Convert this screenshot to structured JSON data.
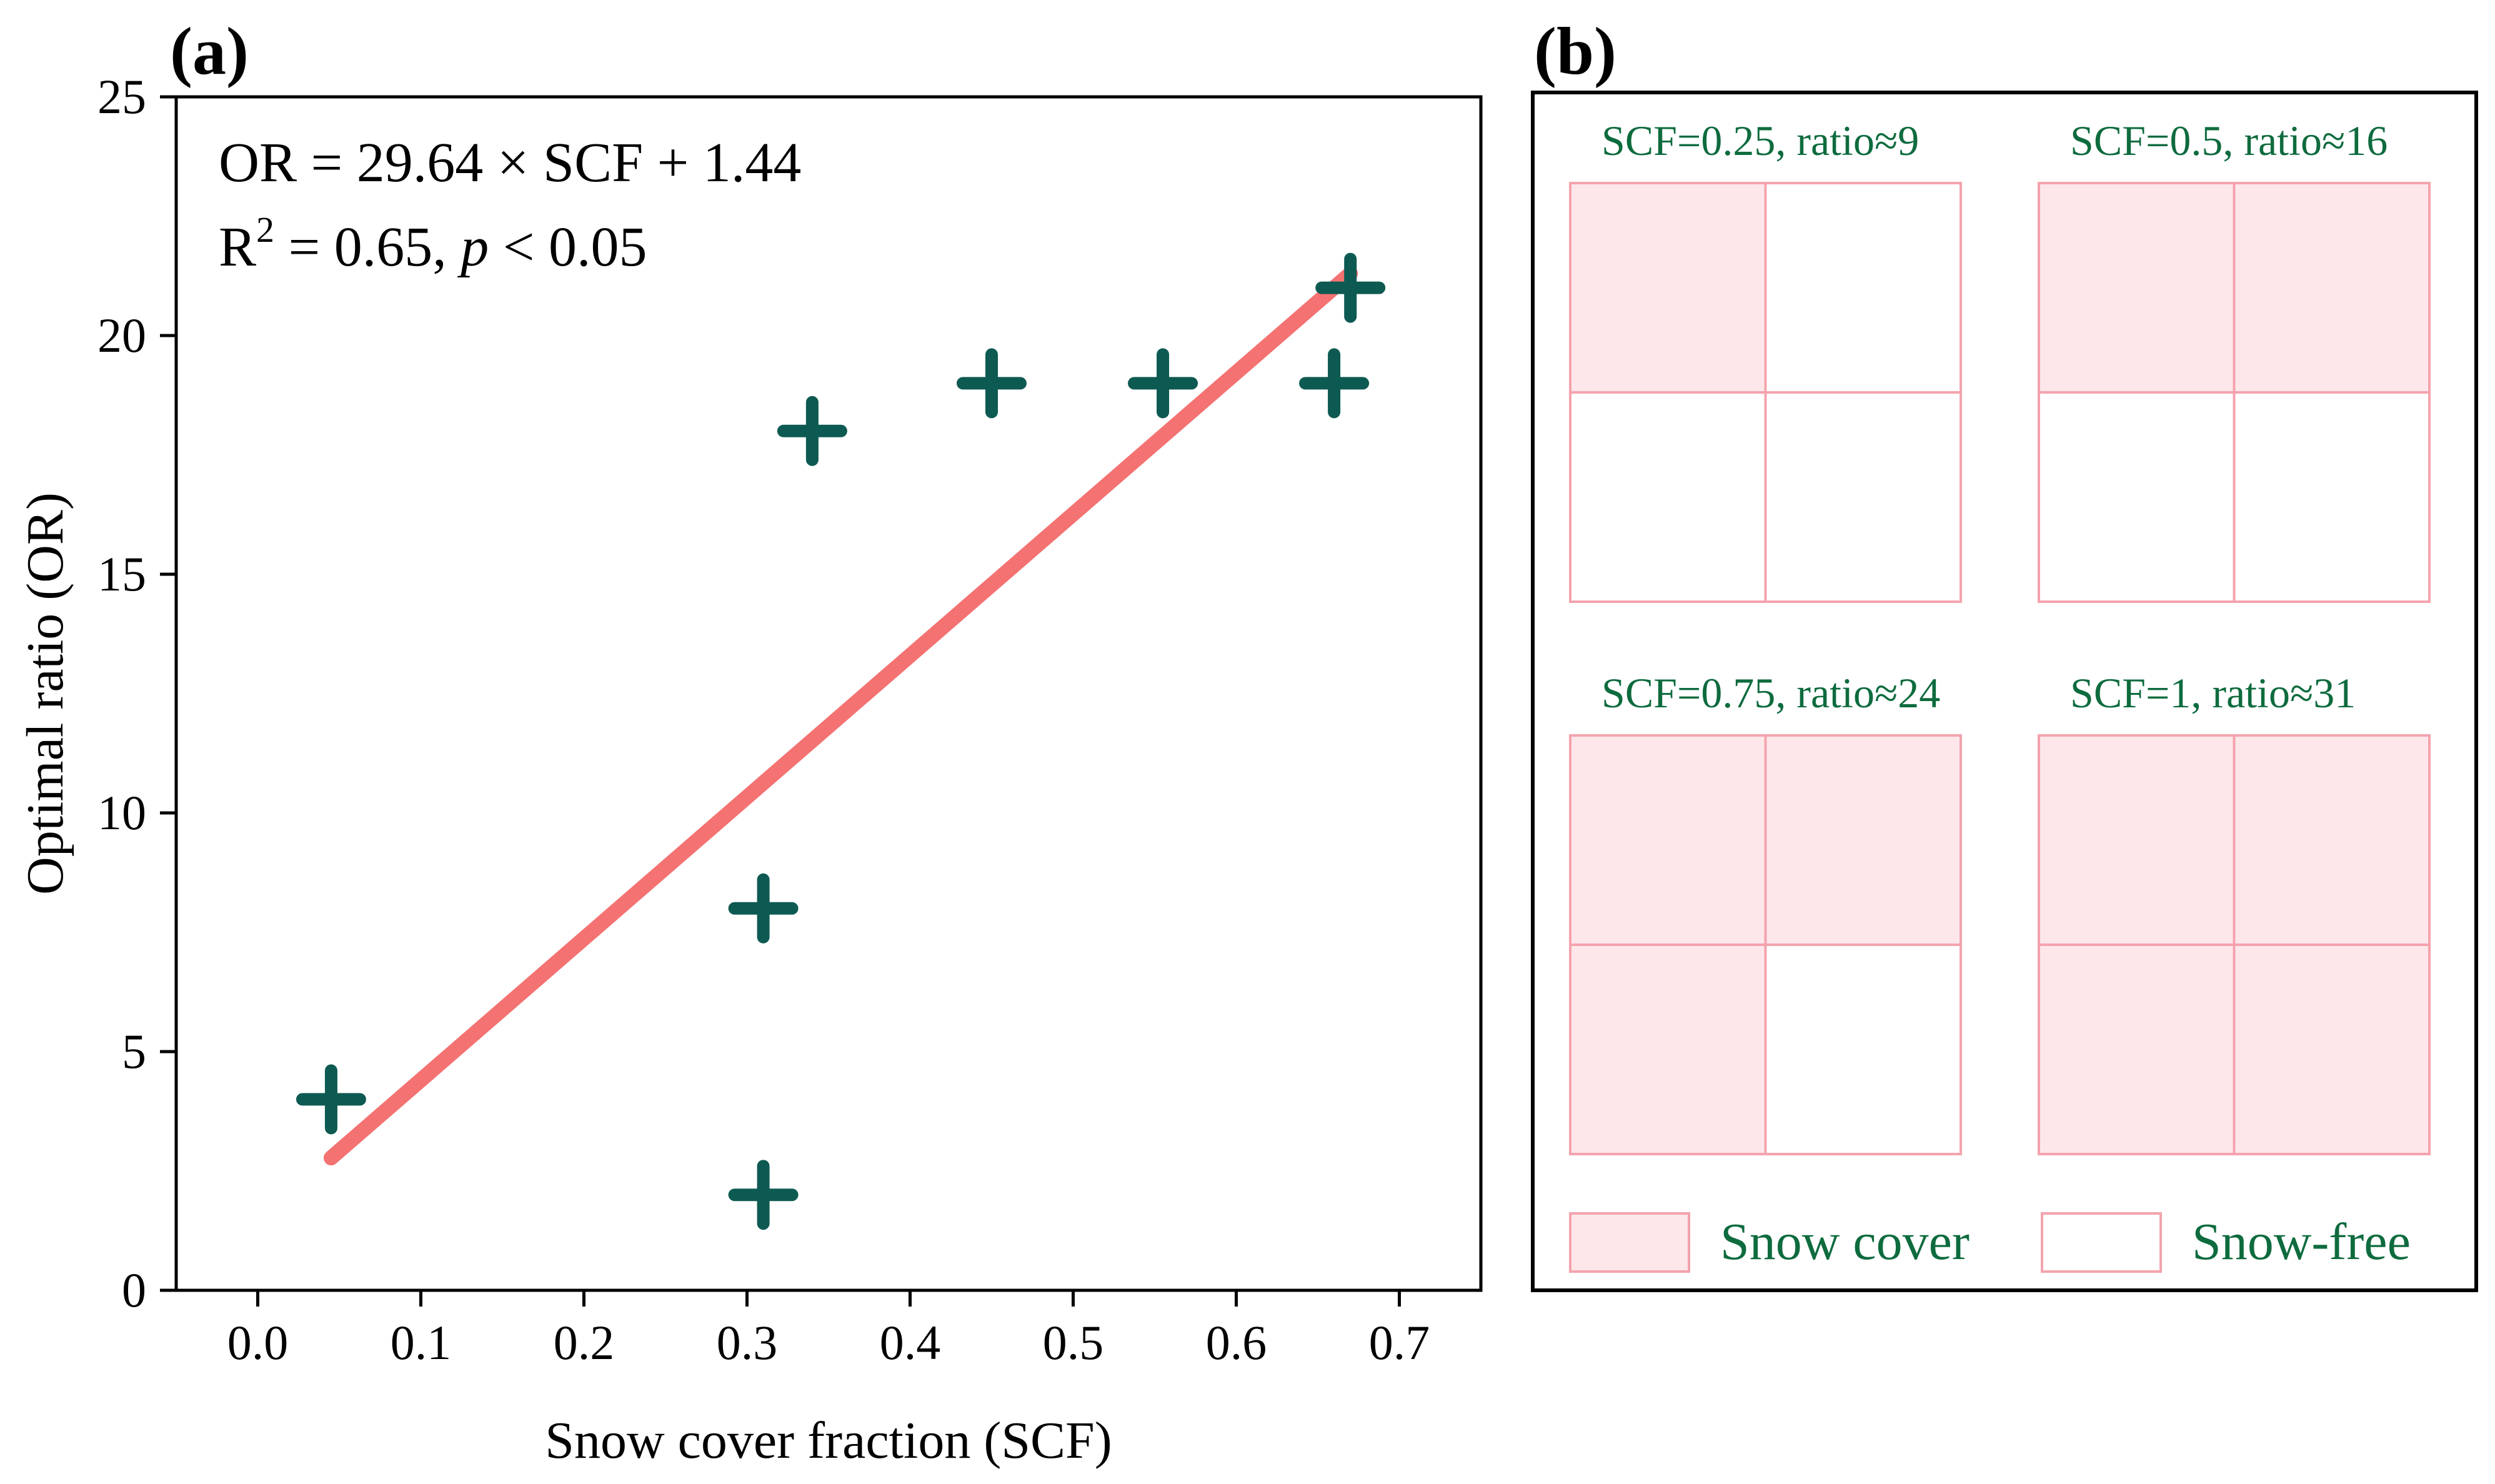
{
  "chart_data": [
    {
      "panel_label": "(a)",
      "type": "scatter",
      "xlabel": "Snow cover fraction (SCF)",
      "ylabel": "Optimal ratio (OR)",
      "xlim": [
        -0.05,
        0.75
      ],
      "ylim": [
        0,
        25
      ],
      "xticks": [
        0.0,
        0.1,
        0.2,
        0.3,
        0.4,
        0.5,
        0.6,
        0.7
      ],
      "xtick_labels": [
        "0.0",
        "0.1",
        "0.2",
        "0.3",
        "0.4",
        "0.5",
        "0.6",
        "0.7"
      ],
      "yticks": [
        0,
        5,
        10,
        15,
        20,
        25
      ],
      "ytick_labels": [
        "0",
        "5",
        "10",
        "15",
        "20",
        "25"
      ],
      "grid": false,
      "points": [
        {
          "x": 0.045,
          "y": 4
        },
        {
          "x": 0.31,
          "y": 2
        },
        {
          "x": 0.31,
          "y": 8
        },
        {
          "x": 0.34,
          "y": 18
        },
        {
          "x": 0.45,
          "y": 19
        },
        {
          "x": 0.555,
          "y": 19
        },
        {
          "x": 0.66,
          "y": 19
        },
        {
          "x": 0.67,
          "y": 21
        }
      ],
      "fit_line": {
        "slope": 29.64,
        "intercept": 1.44,
        "x_range": [
          0.045,
          0.67
        ]
      },
      "annotation_eq": "OR = 29.64 × SCF + 1.44",
      "annotation_r2_prefix": "R",
      "annotation_r2_sup": "2",
      "annotation_r2_mid": " = 0.65, ",
      "annotation_r2_p": "p",
      "annotation_r2_end": " < 0.05",
      "colors": {
        "points": "#0d5a52",
        "line": "#f47272",
        "axis": "#000000"
      }
    },
    {
      "panel_label": "(b)",
      "type": "diagram",
      "grids": [
        {
          "title": "SCF=0.25, ratio≈9",
          "cells": [
            true,
            false,
            false,
            false
          ]
        },
        {
          "title": "SCF=0.5, ratio≈16",
          "cells": [
            true,
            true,
            false,
            false
          ]
        },
        {
          "title": "SCF=0.75, ratio≈24",
          "cells": [
            true,
            true,
            true,
            false
          ]
        },
        {
          "title": "SCF=1, ratio≈31",
          "cells": [
            true,
            true,
            true,
            true
          ]
        }
      ],
      "legend": [
        {
          "label": "Snow cover",
          "filled": true
        },
        {
          "label": "Snow-free",
          "filled": false
        }
      ],
      "colors": {
        "snow_fill": "#fde7ea",
        "cell_border": "#f4a3ae",
        "title_text": "#0e6b3e",
        "frame": "#000000"
      }
    }
  ]
}
